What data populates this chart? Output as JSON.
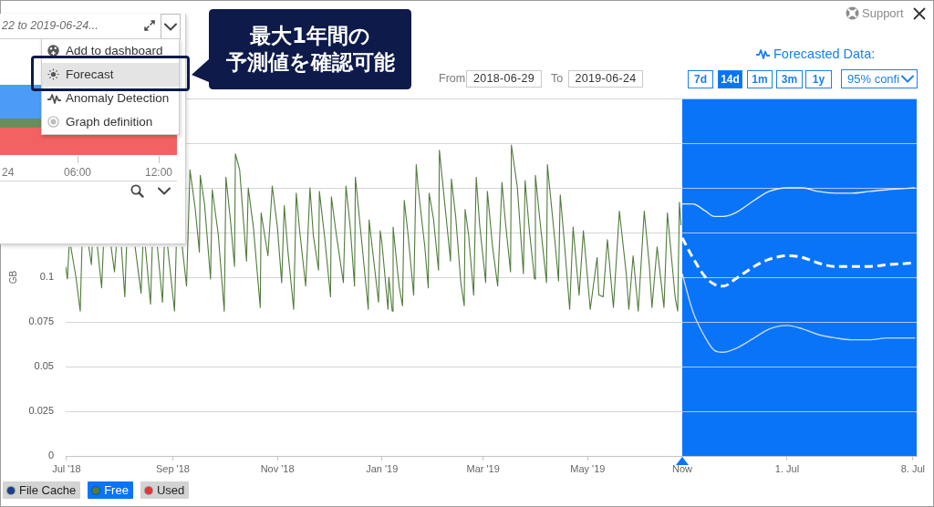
{
  "chart_data": [
    {
      "type": "line",
      "ylabel": "GB",
      "annotations": [
        "From",
        "2018-06-29",
        "To",
        "2019-06-24"
      ],
      "xlim": [
        "2018-06-30T12:00",
        "2019-06-25T04:00"
      ],
      "xticks": [
        {
          "value": "2018-07",
          "label": "Jul '18"
        },
        {
          "value": "2018-09",
          "label": "Sep '18"
        },
        {
          "value": "2018-11",
          "label": "Nov '18"
        },
        {
          "value": "2019-01",
          "label": "Jan '19"
        },
        {
          "value": "2019-03",
          "label": "Mar '19"
        },
        {
          "value": "2019-05",
          "label": "May '19"
        }
      ],
      "ylim": [
        0,
        0.2
      ],
      "yticks": [
        0,
        0.025,
        0.05,
        0.075,
        0.1,
        {
          "value": 0.125,
          "label": null
        },
        {
          "value": 0.15,
          "label": null
        },
        {
          "value": 0.175,
          "label": null
        },
        {
          "value": 0.2,
          "label": null
        }
      ],
      "grid": "y",
      "legend": "bottom left",
      "marker": "none",
      "line_style": "solid",
      "series": [
        {
          "name": "File Cache",
          "color": "#1b3f8b"
        },
        {
          "name": "Free",
          "color": "#517c3c",
          "x": [
            "2018-06-30T12:00",
            "2018-07-01T12:00",
            "2018-07-02T12:00",
            "2018-07-03T00:00",
            "2018-07-03T12:00",
            "2018-07-06T12:00",
            "2018-07-09",
            "2018-07-10",
            "2018-07-12",
            "2018-07-14",
            "2018-07-15T12:00",
            "2018-07-16",
            "2018-07-17T12:00",
            "2018-07-19",
            "2018-07-21T12:00",
            "2018-07-22T12:00",
            "2018-07-24T12:00",
            "2018-07-27",
            "2018-07-29",
            "2018-07-30",
            "2018-07-31T12:00",
            "2018-08-02",
            "2018-08-04",
            "2018-08-05",
            "2018-08-08",
            "2018-08-10",
            "2018-08-13T12:00",
            "2018-08-14T12:00",
            "2018-08-15T12:00",
            "2018-08-16",
            "2018-08-19",
            "2018-08-20",
            "2018-08-21T12:00",
            "2018-08-23",
            "2018-08-26",
            "2018-08-27",
            "2018-08-28",
            "2018-08-29",
            "2018-09-02",
            "2018-09-03",
            "2018-09-05",
            "2018-09-06T12:00",
            "2018-09-09",
            "2018-09-11",
            "2018-09-14",
            "2018-09-16T12:00",
            "2018-09-17",
            "2018-09-19T12:00",
            "2018-09-23",
            "2018-09-24",
            "2018-09-27T12:00",
            "2018-10-01",
            "2018-10-02",
            "2018-10-04T12:00",
            "2018-10-07",
            "2018-10-07T12:00",
            "2018-10-10",
            "2018-10-12T12:00",
            "2018-10-14",
            "2018-10-15",
            "2018-10-18",
            "2018-10-22",
            "2018-10-22T12:00",
            "2018-10-26T12:00",
            "2018-10-29",
            "2018-11-01",
            "2018-11-03T12:00",
            "2018-11-05",
            "2018-11-07",
            "2018-11-10T12:00",
            "2018-11-12",
            "2018-11-14",
            "2018-11-17T12:00",
            "2018-11-20",
            "2018-11-22",
            "2018-11-25",
            "2018-11-25T12:00",
            "2018-11-28T12:00",
            "2018-12-02",
            "2018-12-02T12:00",
            "2018-12-05T12:00",
            "2018-12-09T12:00",
            "2018-12-11",
            "2018-12-13T12:00",
            "2018-12-16",
            "2018-12-16T12:00",
            "2018-12-20T12:00",
            "2018-12-24",
            "2018-12-24T12:00",
            "2018-12-30",
            "2018-12-31",
            "2019-01-01",
            "2019-01-04T12:00",
            "2019-01-05",
            "2019-01-07",
            "2019-01-07T12:00",
            "2019-01-11",
            "2019-01-13",
            "2019-01-14",
            "2019-01-16",
            "2019-01-19T12:00",
            "2019-01-21",
            "2019-01-22",
            "2019-01-26",
            "2019-01-28",
            "2019-01-28T12:00",
            "2019-01-31",
            "2019-02-03",
            "2019-02-03T12:00",
            "2019-02-05T12:00",
            "2019-02-10",
            "2019-02-10T12:00",
            "2019-02-13",
            "2019-02-16",
            "2019-02-18",
            "2019-02-18T12:00",
            "2019-02-20T12:00",
            "2019-02-23T12:00",
            "2019-02-25",
            "2019-02-27",
            "2019-03-02T12:00",
            "2019-03-03T12:00",
            "2019-03-06T12:00",
            "2019-03-09T12:00",
            "2019-03-12",
            "2019-03-14",
            "2019-03-17",
            "2019-03-17T12:00",
            "2019-03-21",
            "2019-03-24T12:00",
            "2019-03-25T12:00",
            "2019-03-28",
            "2019-03-31",
            "2019-03-31T12:00",
            "2019-04-03",
            "2019-04-07",
            "2019-04-07T12:00",
            "2019-04-12",
            "2019-04-14",
            "2019-04-15",
            "2019-04-17",
            "2019-04-20T12:00",
            "2019-04-22T12:00",
            "2019-04-26",
            "2019-04-28T12:00",
            "2019-05-02T12:00",
            "2019-05-06T12:00",
            "2019-05-07T12:00",
            "2019-05-10",
            "2019-05-12T12:00",
            "2019-05-16",
            "2019-05-19T12:00",
            "2019-05-23T12:00",
            "2019-05-25",
            "2019-05-27T12:00",
            "2019-05-30T12:00",
            "2019-06-03",
            "2019-06-06",
            "2019-06-07T12:00",
            "2019-06-10T12:00",
            "2019-06-14T12:00",
            "2019-06-16T12:00",
            "2019-06-21",
            "2019-06-22T12:00",
            "2019-06-23T12:00",
            "2019-06-24T12:00"
          ],
          "values": [
            0.106,
            0.099,
            0.117,
            null,
            0.117,
            0.1,
            0.081,
            0.117,
            null,
            0.117,
            0.107,
            0.117,
            null,
            0.117,
            0.094,
            0.117,
            null,
            0.117,
            0.103,
            0.117,
            null,
            0.117,
            0.089,
            0.117,
            null,
            0.117,
            0.091,
            0.117,
            null,
            0.117,
            0.085,
            0.117,
            null,
            0.117,
            0.086,
            0.117,
            null,
            0.117,
            0.081,
            0.117,
            null,
            0.117,
            0.095,
            0.16,
            0.139,
            0.114,
            0.157,
            0.141,
            0.099,
            0.149,
            0.124,
            0.081,
            0.156,
            0.133,
            0.106,
            0.169,
            0.16,
            0.128,
            0.109,
            0.15,
            0.128,
            0.083,
            0.136,
            0.112,
            0.151,
            0.128,
            0.097,
            0.14,
            0.116,
            0.082,
            0.147,
            0.126,
            0.095,
            0.15,
            0.123,
            0.104,
            0.148,
            0.123,
            0.089,
            0.145,
            0.123,
            0.097,
            0.151,
            0.128,
            0.095,
            0.156,
            0.117,
            0.082,
            0.132,
            0.086,
            0.126,
            0.119,
            0.082,
            0.1,
            0.081,
            0.128,
            0.095,
            0.084,
            0.143,
            0.126,
            0.09,
            0.163,
            0.151,
            0.117,
            0.094,
            0.147,
            0.133,
            0.104,
            0.171,
            0.152,
            0.109,
            0.155,
            0.134,
            0.097,
            0.084,
            0.138,
            0.124,
            0.09,
            0.156,
            0.129,
            0.097,
            0.148,
            0.117,
            0.095,
            0.153,
            0.131,
            0.103,
            0.174,
            0.15,
            0.102,
            0.154,
            0.126,
            0.099,
            0.157,
            0.133,
            0.097,
            0.163,
            0.119,
            0.098,
            0.146,
            0.124,
            0.082,
            0.128,
            0.09,
            0.126,
            0.082,
            0.111,
            0.09,
            0.089,
            0.121,
            0.083,
            0.137,
            0.102,
            0.082,
            0.112,
            0.081,
            0.137,
            0.106,
            0.083,
            0.117,
            0.083,
            0.136,
            0.089,
            0.081,
            0.142,
            0.129
          ]
        },
        {
          "name": "Used",
          "color": "#e2343b"
        }
      ]
    },
    {
      "type": "line",
      "title": "Forecasted Data:",
      "annotations": [
        "7d",
        "14d",
        "1m",
        "3m",
        "1y",
        "95% confi",
        "Support"
      ],
      "xlim": [
        "2019-06-25T04:00",
        "2019-07-08T05:00"
      ],
      "xticks": [
        {
          "value": "2019-06-25T04:00",
          "label": "Now"
        },
        {
          "value": "2019-07-01",
          "label": "1. Jul"
        },
        {
          "value": "2019-07-08",
          "label": "8. Jul"
        }
      ],
      "ylim": [
        0,
        0.2
      ],
      "yticks": [
        0,
        0.025,
        0.05,
        0.075,
        0.1,
        0.125,
        0.15,
        0.175,
        0.2
      ],
      "tick_labels": "x",
      "grid": "y",
      "marker": "none",
      "bands": [
        {
          "axis": "x",
          "from": "2019-06-25T04:00",
          "to": "2019-07-08T05:00",
          "color": "#0a74f8"
        }
      ],
      "x": [
        "2019-06-25T04:00",
        "2019-06-25T18:00",
        "2019-06-26T11:00",
        "2019-06-26T23:00",
        "2019-06-27T11:00",
        "2019-06-28T03:00",
        "2019-06-29T04:00",
        "2019-06-30",
        "2019-07-01",
        "2019-07-01T21:00",
        "2019-07-02T17:00",
        "2019-07-03T17:00",
        "2019-07-04T14:00",
        "2019-07-05T14:00",
        "2019-07-06T14:00",
        "2019-07-08T03:00"
      ],
      "series": [
        {
          "color": "#ffffff",
          "line_style": "dashed",
          "values": [
            0.122,
            0.111,
            0.1,
            0.096,
            0.095,
            0.099,
            0.106,
            0.11,
            0.112,
            0.111,
            0.108,
            0.106,
            0.106,
            0.106,
            0.107,
            0.108
          ]
        },
        {
          "color": "#e2ecfd",
          "line_style": "solid",
          "values": [
            0.141,
            0.141,
            0.137,
            0.134,
            0.134,
            0.136,
            0.143,
            0.148,
            0.15,
            0.15,
            0.148,
            0.147,
            0.147,
            0.148,
            0.149,
            0.15
          ]
        },
        {
          "color": "#c6d9fb",
          "line_style": "solid",
          "values": [
            0.102,
            0.081,
            0.066,
            0.059,
            0.058,
            0.06,
            0.066,
            0.071,
            0.073,
            0.071,
            0.068,
            0.066,
            0.065,
            0.065,
            0.066,
            0.066
          ]
        }
      ]
    },
    {
      "type": "other",
      "title": "22 to 2019-06-24...",
      "annotations": [
        "Add to dashboard",
        "Forecast",
        "Anomaly Detection",
        "Graph definition",
        "24",
        "06:00",
        "12:00",
        "最大1年間の",
        "予測値を確認可能"
      ]
    }
  ]
}
